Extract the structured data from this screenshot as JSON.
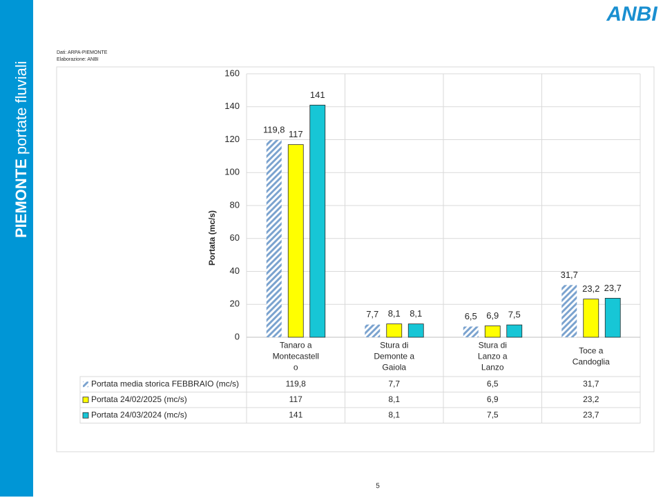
{
  "sidebar": {
    "title_bold": "PIEMONTE",
    "title_rest": "portate fluviali"
  },
  "logo": "ANBI",
  "source": [
    "Dati: ARPA-PIEMONTE",
    "Elaborazione: ANBI"
  ],
  "page_number": "5",
  "chart_data": {
    "type": "bar",
    "y_label": "Portata (mc/s)",
    "categories": [
      "Tanaro a Montecastello",
      "Stura di Demonte a Gaiola",
      "Stura di Lanzo a Lanzo",
      "Toce a Candoglia"
    ],
    "series": [
      {
        "name": "Portata media storica FEBBRAIO (mc/s)",
        "color": "#7ba3cf",
        "hatch": true,
        "values": [
          119.8,
          7.7,
          6.5,
          31.7
        ],
        "value_labels": [
          "119,8",
          "7,7",
          "6,5",
          "31,7"
        ]
      },
      {
        "name": "Portata 24/02/2025 (mc/s)",
        "color": "#ffff00",
        "values": [
          117,
          8.1,
          6.9,
          23.2
        ],
        "value_labels": [
          "117",
          "8,1",
          "6,9",
          "23,2"
        ]
      },
      {
        "name": "Portata 24/03/2024 (mc/s)",
        "color": "#17c6d6",
        "values": [
          141,
          8.1,
          7.5,
          23.7
        ],
        "value_labels": [
          "141",
          "8,1",
          "7,5",
          "23,7"
        ]
      }
    ],
    "ylim": [
      0,
      160
    ],
    "yticks": [
      0,
      20,
      40,
      60,
      80,
      100,
      120,
      140,
      160
    ],
    "grid": true,
    "data_table": true
  }
}
